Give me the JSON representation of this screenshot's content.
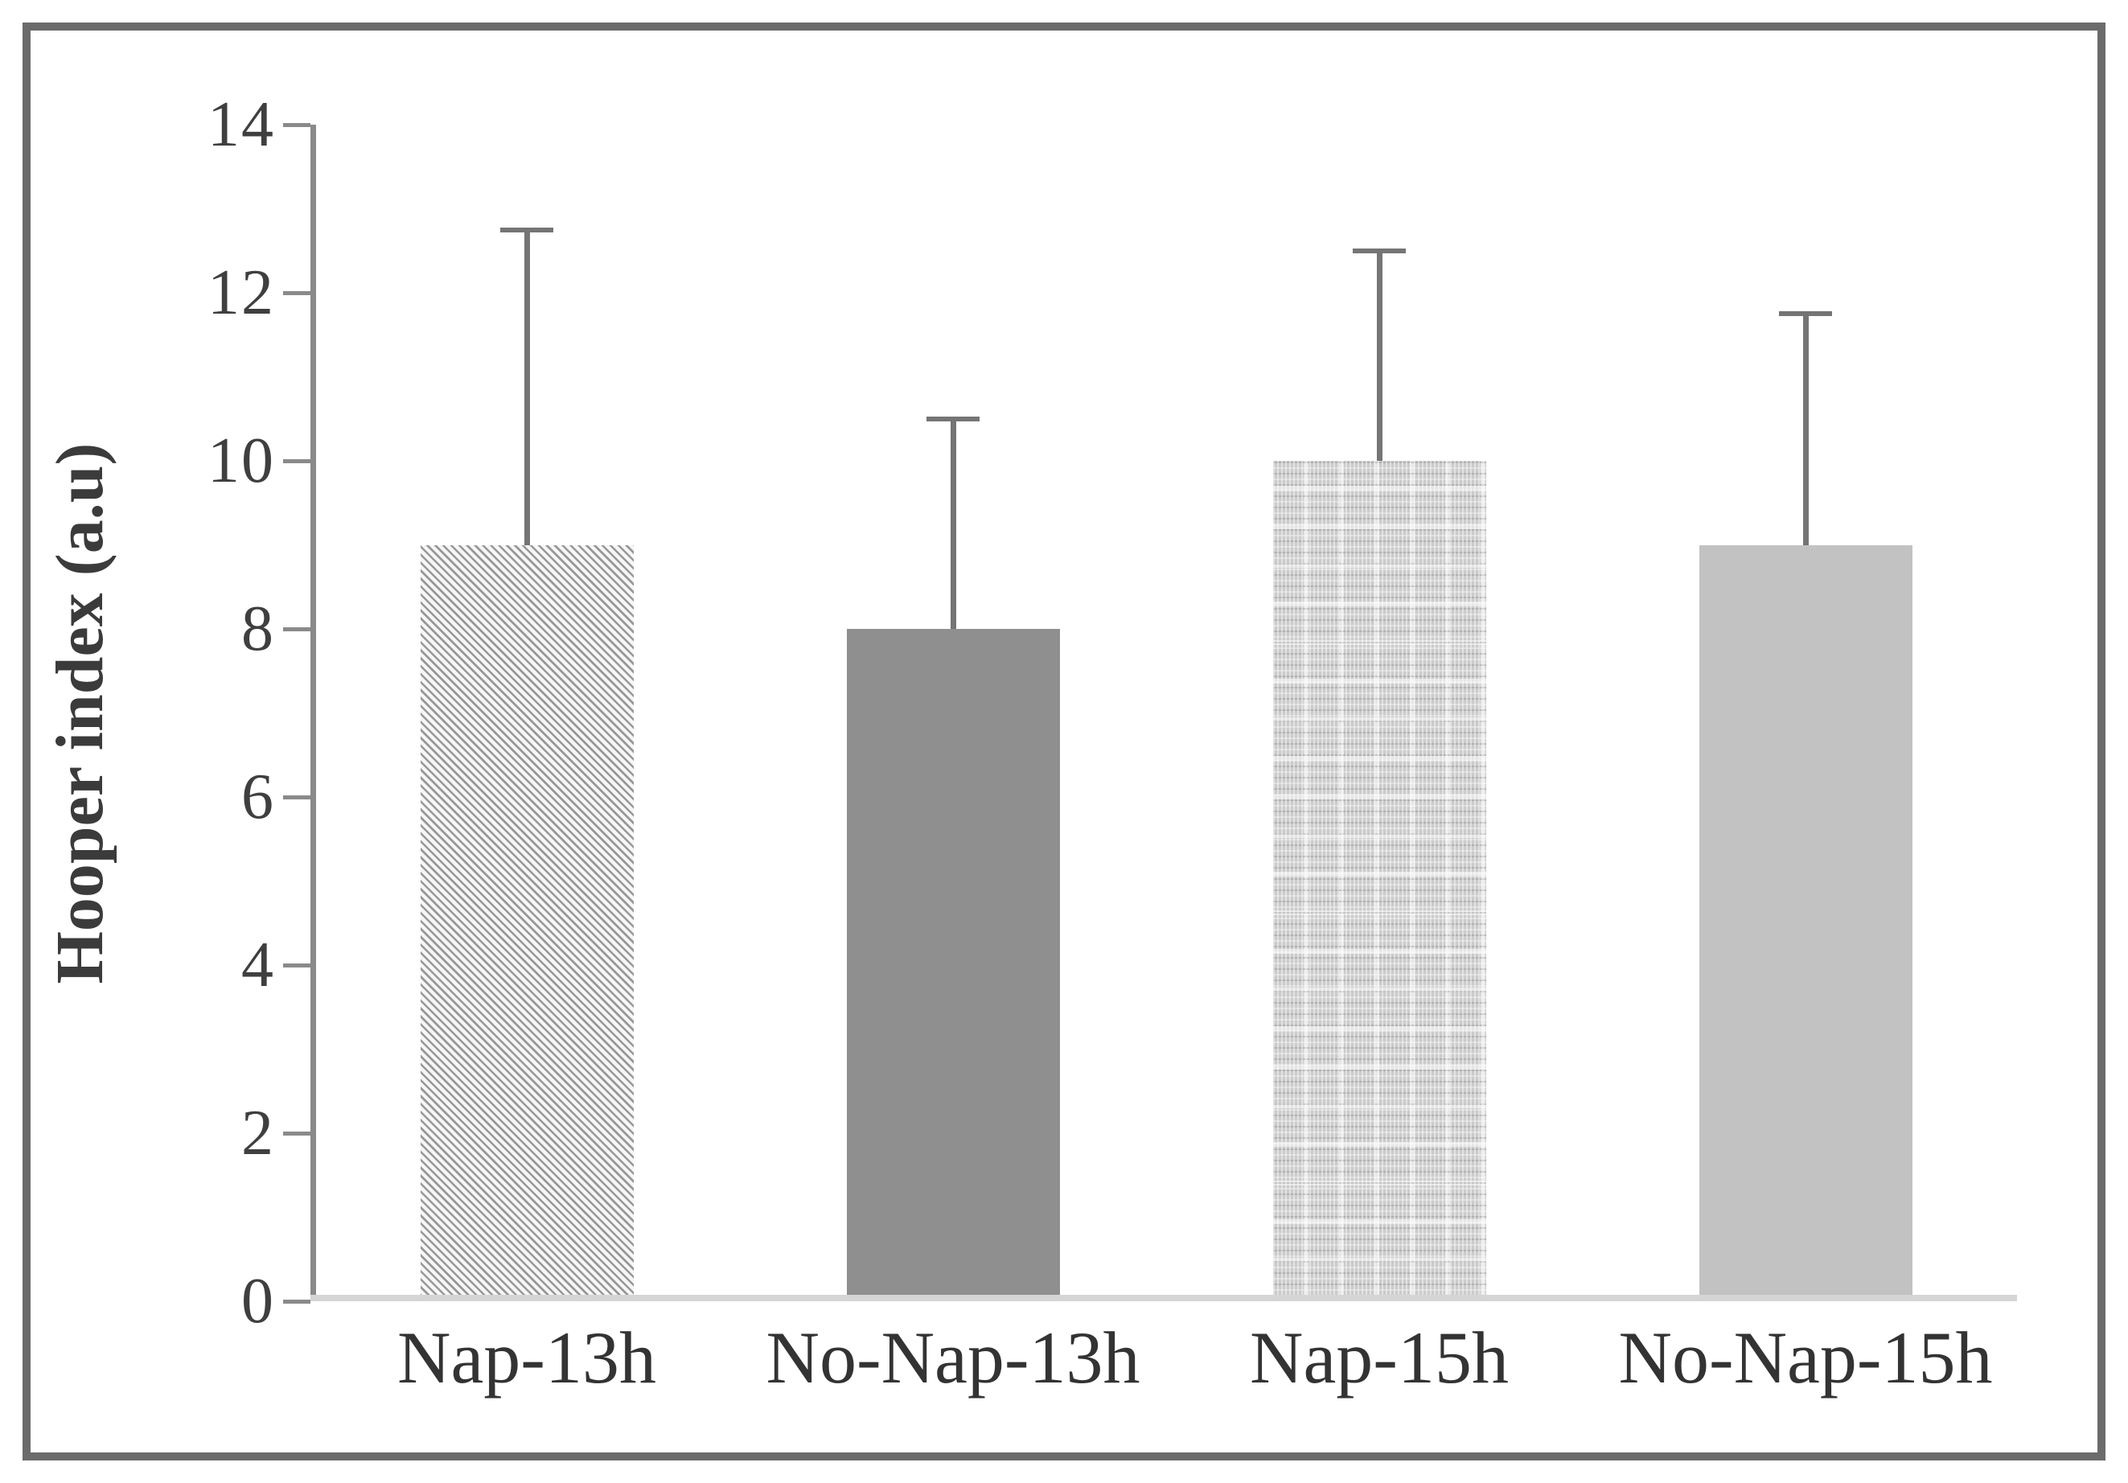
{
  "chart_data": {
    "type": "bar",
    "title": "",
    "xlabel": "",
    "ylabel": "Hooper index (a.u)",
    "ylim": [
      0,
      14
    ],
    "yticks": [
      0,
      2,
      4,
      6,
      8,
      10,
      12,
      14
    ],
    "grid": false,
    "legend": false,
    "categories": [
      "Nap-13h",
      "No-Nap-13h",
      "Nap-15h",
      "No-Nap-15h"
    ],
    "series": [
      {
        "name": "Hooper index (a.u)",
        "values": [
          9.0,
          8.0,
          10.0,
          9.0
        ],
        "error_plus": [
          3.75,
          2.5,
          2.5,
          2.75
        ],
        "error_bar_tops": [
          12.75,
          10.5,
          12.5,
          11.75
        ]
      }
    ],
    "bar_fill_patterns": [
      "diagonal-hatch",
      "solid-dark-gray",
      "woven-dashes",
      "solid-light-gray"
    ]
  },
  "colors": {
    "frame_border": "#6b6b6b",
    "axis_line": "#8a8a8a",
    "baseline": "#d5d5d5",
    "error_bar": "#757575",
    "text": "#3b3b3b",
    "bar_solid_dark": "#8f8f8f",
    "bar_solid_light": "#c2c2c2",
    "hatch_stripe": "#989898",
    "woven_base": "#cbcbcb"
  }
}
